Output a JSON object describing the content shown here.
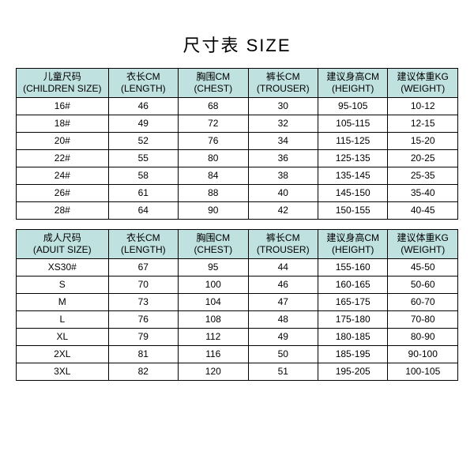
{
  "title": "尺寸表 SIZE",
  "header_bg": "#bfe1e0",
  "children_table": {
    "headers": [
      {
        "top": "儿童尺码",
        "bot": "(CHILDREN SIZE)"
      },
      {
        "top": "衣长CM",
        "bot": "(LENGTH)"
      },
      {
        "top": "胸围CM",
        "bot": "(CHEST)"
      },
      {
        "top": "裤长CM",
        "bot": "(TROUSER)"
      },
      {
        "top": "建议身高CM",
        "bot": "(HEIGHT)"
      },
      {
        "top": "建议体重KG",
        "bot": "(WEIGHT)"
      }
    ],
    "rows": [
      [
        "16#",
        "46",
        "68",
        "30",
        "95-105",
        "10-12"
      ],
      [
        "18#",
        "49",
        "72",
        "32",
        "105-115",
        "12-15"
      ],
      [
        "20#",
        "52",
        "76",
        "34",
        "115-125",
        "15-20"
      ],
      [
        "22#",
        "55",
        "80",
        "36",
        "125-135",
        "20-25"
      ],
      [
        "24#",
        "58",
        "84",
        "38",
        "135-145",
        "25-35"
      ],
      [
        "26#",
        "61",
        "88",
        "40",
        "145-150",
        "35-40"
      ],
      [
        "28#",
        "64",
        "90",
        "42",
        "150-155",
        "40-45"
      ]
    ]
  },
  "adult_table": {
    "headers": [
      {
        "top": "成人尺码",
        "bot": "(ADUIT SIZE)"
      },
      {
        "top": "衣长CM",
        "bot": "(LENGTH)"
      },
      {
        "top": "胸围CM",
        "bot": "(CHEST)"
      },
      {
        "top": "裤长CM",
        "bot": "(TROUSER)"
      },
      {
        "top": "建议身高CM",
        "bot": "(HEIGHT)"
      },
      {
        "top": "建议体重KG",
        "bot": "(WEIGHT)"
      }
    ],
    "rows": [
      [
        "XS30#",
        "67",
        "95",
        "44",
        "155-160",
        "45-50"
      ],
      [
        "S",
        "70",
        "100",
        "46",
        "160-165",
        "50-60"
      ],
      [
        "M",
        "73",
        "104",
        "47",
        "165-175",
        "60-70"
      ],
      [
        "L",
        "76",
        "108",
        "48",
        "175-180",
        "70-80"
      ],
      [
        "XL",
        "79",
        "112",
        "49",
        "180-185",
        "80-90"
      ],
      [
        "2XL",
        "81",
        "116",
        "50",
        "185-195",
        "90-100"
      ],
      [
        "3XL",
        "82",
        "120",
        "51",
        "195-205",
        "100-105"
      ]
    ]
  }
}
